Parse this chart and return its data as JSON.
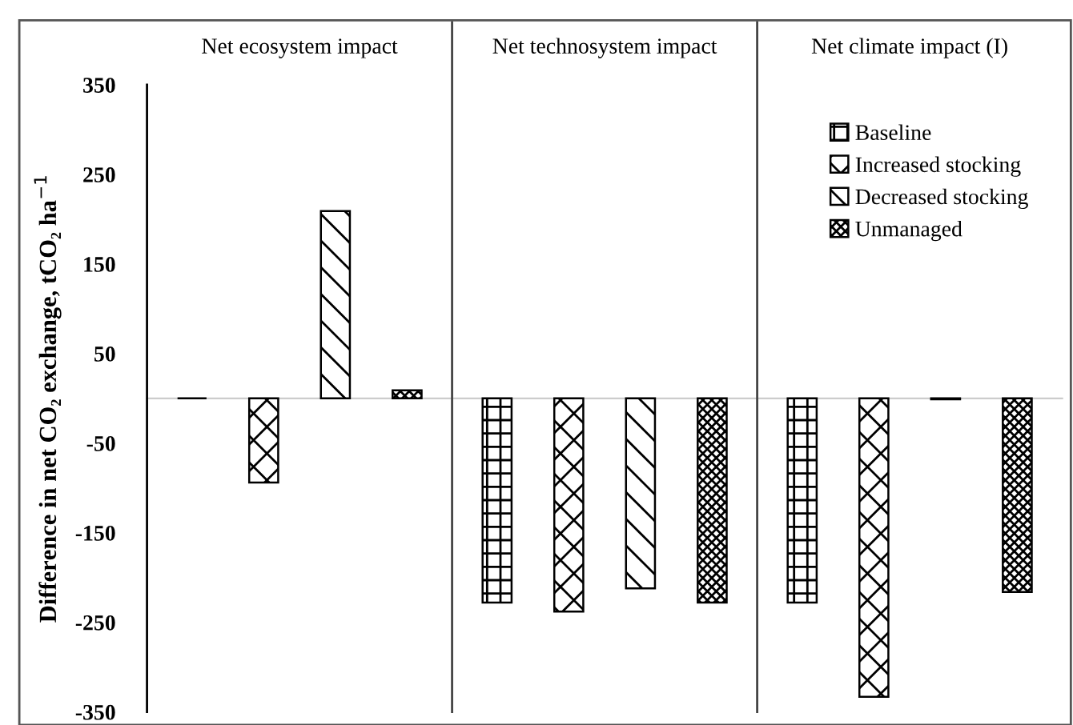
{
  "chart_data": {
    "type": "bar",
    "categories": [
      "Net ecosystem impact",
      "Net technosystem impact",
      "Net climate impact (I)"
    ],
    "ylabel": "Difference in net CO₂ exchange, tCO₂ ha$^{−1}$",
    "series": [
      {
        "name": "Baseline",
        "color": "#000000",
        "values": [
          0,
          -228,
          -228
        ]
      },
      {
        "name": "Increased stocking",
        "color": "#000000",
        "values": [
          -94,
          -238,
          -333
        ]
      },
      {
        "name": "Decreased stocking",
        "color": "#000000",
        "values": [
          209,
          -212,
          -1
        ]
      },
      {
        "name": "Unmanaged",
        "color": "#000000",
        "values": [
          9,
          -228,
          -216
        ]
      }
    ],
    "ylim": [
      -350,
      350
    ],
    "yticks": [
      -350,
      -250,
      -150,
      -50,
      50,
      150,
      250,
      350
    ],
    "grid": "x",
    "legend": "top right"
  }
}
